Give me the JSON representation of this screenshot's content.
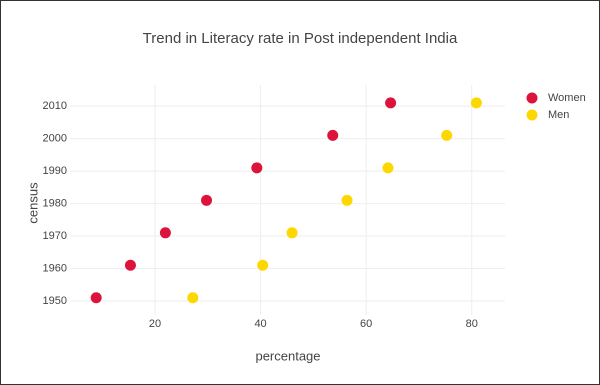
{
  "chart_data": {
    "type": "scatter",
    "title": "Trend in Literacy rate in Post independent India",
    "x_label": "percentage",
    "y_label": "census",
    "series": [
      {
        "name": "Women",
        "color": "#dc143c",
        "x": [
          8.86,
          15.35,
          21.97,
          29.76,
          39.29,
          53.67,
          64.63
        ],
        "values": [
          1951,
          1961,
          1971,
          1981,
          1991,
          2001,
          2011
        ]
      },
      {
        "name": "Men",
        "color": "#ffd700",
        "x": [
          27.16,
          40.4,
          45.96,
          56.38,
          64.13,
          75.26,
          80.88
        ],
        "values": [
          1951,
          1961,
          1971,
          1981,
          1991,
          2001,
          2011
        ]
      }
    ],
    "xlim": [
      3.9,
      86.3
    ],
    "ylim": [
      1945.7,
      2016.5
    ],
    "xticks": [
      20,
      40,
      60,
      80
    ],
    "yticks": [
      1950,
      1960,
      1970,
      1980,
      1990,
      2000,
      2010
    ],
    "grid": true,
    "legend": "top-right"
  }
}
